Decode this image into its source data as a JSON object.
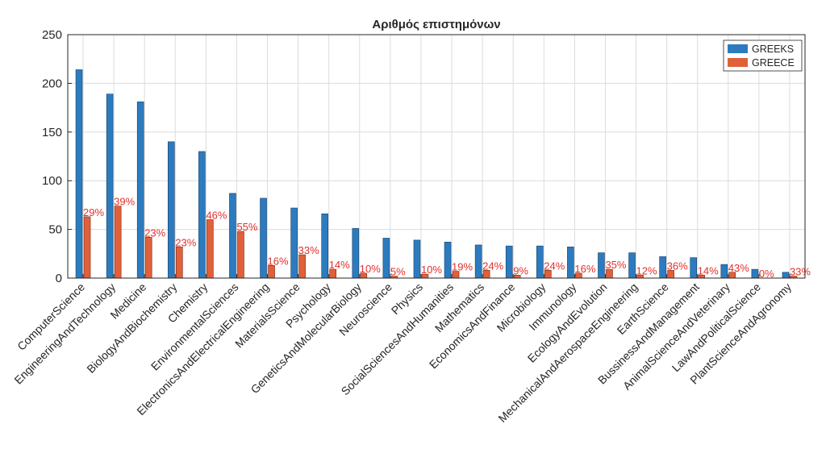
{
  "chart_data": {
    "type": "bar",
    "title": "Αριθμός επιστημόνων",
    "xlabel": "",
    "ylabel": "",
    "ylim": [
      0,
      250
    ],
    "yticks": [
      0,
      50,
      100,
      150,
      200,
      250
    ],
    "grid": true,
    "legend_position": "top-right",
    "colors": {
      "GREEKS": "#2c7bbf",
      "GREECE": "#e0603a",
      "labels": "#e0302b"
    },
    "categories": [
      "ComputerScience",
      "EngineeringAndTechnology",
      "Medicine",
      "BiologyAndBiochemistry",
      "Chemistry",
      "EnvironmentalSciences",
      "ElectronicsAndElectricalEngineering",
      "MaterialsScience",
      "Psychology",
      "GeneticsAndMolecularBiology",
      "Neuroscience",
      "Physics",
      "SocialSciencesAndHumanities",
      "Mathematics",
      "EconomicsAndFinance",
      "Microbiology",
      "Immunology",
      "EcologyAndEvolution",
      "MechanicalAndAerospaceEngineering",
      "EarthScience",
      "BussinessAndManagement",
      "AnimalScienceAndVeterinary",
      "LawAndPoliticalScience",
      "PlantScienceAndAgronomy"
    ],
    "series": [
      {
        "name": "GREEKS",
        "values": [
          214,
          189,
          181,
          140,
          130,
          87,
          82,
          72,
          66,
          51,
          41,
          39,
          37,
          34,
          33,
          33,
          32,
          26,
          26,
          22,
          21,
          14,
          9,
          6
        ]
      },
      {
        "name": "GREECE",
        "values": [
          63,
          74,
          42,
          32,
          60,
          48,
          13,
          24,
          9,
          5,
          2,
          4,
          7,
          8,
          3,
          8,
          5,
          9,
          3,
          8,
          3,
          6,
          0,
          2
        ]
      }
    ],
    "data_labels": [
      "29%",
      "39%",
      "23%",
      "23%",
      "46%",
      "55%",
      "16%",
      "33%",
      "14%",
      "10%",
      "5%",
      "10%",
      "19%",
      "24%",
      "9%",
      "24%",
      "16%",
      "35%",
      "12%",
      "36%",
      "14%",
      "43%",
      "0%",
      "33%"
    ]
  }
}
